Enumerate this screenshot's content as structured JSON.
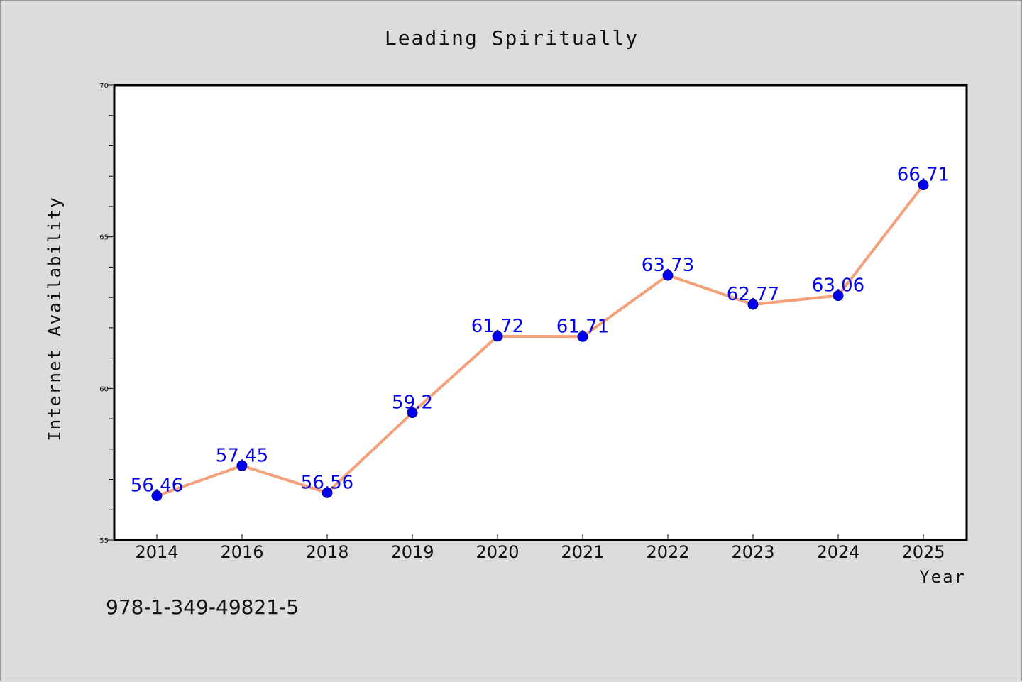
{
  "chart_data": {
    "type": "line",
    "title": "Leading Spiritually",
    "xlabel": "Year",
    "ylabel": "Internet Availability",
    "categories": [
      "2014",
      "2016",
      "2018",
      "2019",
      "2020",
      "2021",
      "2022",
      "2023",
      "2024",
      "2025"
    ],
    "series": [
      {
        "values": [
          56.46,
          57.45,
          56.56,
          59.2,
          61.72,
          61.71,
          63.73,
          62.77,
          63.06,
          66.71
        ],
        "labels": [
          "56.46",
          "57.45",
          "56.56",
          "59.2",
          "61.72",
          "61.71",
          "63.73",
          "62.77",
          "63.06",
          "66.71"
        ],
        "line_color": "#f4a07a",
        "marker_color": "#0000ee"
      }
    ],
    "ylim": [
      55,
      70
    ],
    "yticks": [
      "55",
      "60",
      "65",
      "70"
    ],
    "grid": false,
    "legend": "none",
    "label_color": "#0000ee"
  },
  "footer": {
    "isbn": "978-1-349-49821-5"
  }
}
